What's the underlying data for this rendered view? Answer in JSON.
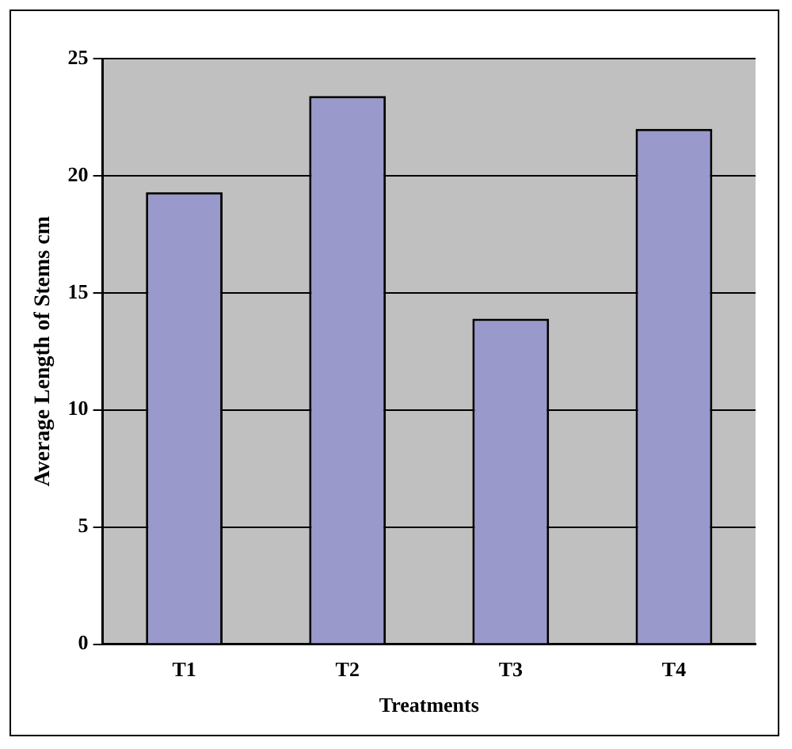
{
  "chart_data": {
    "type": "bar",
    "xlabel": "Treatments",
    "ylabel": "Average Length of Stems cm",
    "categories": [
      "T1",
      "T2",
      "T3",
      "T4"
    ],
    "values": [
      19.3,
      23.4,
      13.9,
      22.0
    ],
    "color": "#9999cc",
    "ylim": [
      0,
      25
    ],
    "yticks": [
      0,
      5,
      10,
      15,
      20,
      25
    ],
    "grid": "y"
  }
}
